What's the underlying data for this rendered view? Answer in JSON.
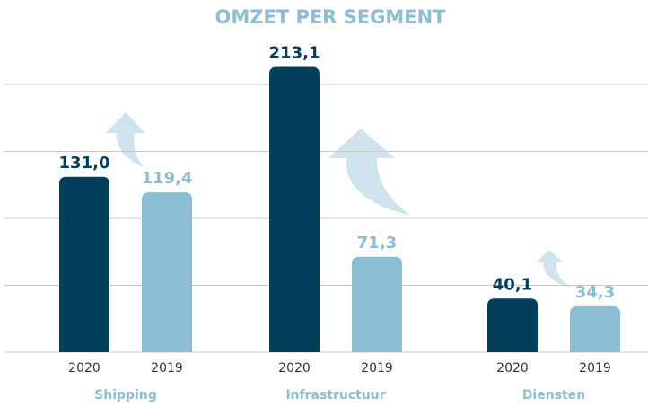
{
  "chart_data": {
    "type": "bar",
    "title": "OMZET PER SEGMENT",
    "categories": [
      "Shipping",
      "Infrastructuur",
      "Diensten"
    ],
    "series": [
      {
        "name": "2020",
        "color": "#023f5a",
        "values": [
          131.0,
          213.1,
          40.1
        ],
        "value_labels": [
          "131,0",
          "213,1",
          "40,1"
        ]
      },
      {
        "name": "2019",
        "color": "#8bbdd5",
        "values": [
          119.4,
          71.3,
          34.3
        ],
        "value_labels": [
          "119,4",
          "71,3",
          "34,3"
        ]
      }
    ],
    "ylim": [
      0,
      250
    ],
    "yticks": [
      0,
      50,
      100,
      150,
      200
    ],
    "grid": true
  }
}
